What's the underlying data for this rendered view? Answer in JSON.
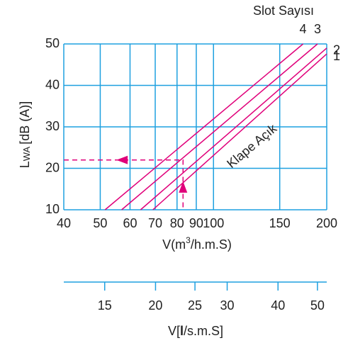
{
  "chart_data": {
    "type": "line",
    "legend_title": "Slot Sayısı",
    "xlog": true,
    "xlim": [
      40,
      200
    ],
    "xticks": [
      40,
      50,
      60,
      70,
      80,
      90,
      100,
      150,
      200
    ],
    "ylim": [
      10,
      50
    ],
    "yticks": [
      10,
      20,
      30,
      40,
      50
    ],
    "grid_color": "#1ea0e0",
    "ylabel": {
      "main": "L",
      "sub": "WA",
      "rest": "[dB (A)]"
    },
    "xlabel": {
      "pre": "V(m",
      "sup": "3",
      "post": "/h.m.S)"
    },
    "annotation": "Klape Açık",
    "guide": {
      "x": 83,
      "y": 22,
      "color": "#e0007a"
    },
    "series": [
      {
        "name": "1",
        "color": "#e0007a",
        "x": [
          69,
          200
        ],
        "values": [
          10,
          47.6
        ]
      },
      {
        "name": "2",
        "color": "#e0007a",
        "x": [
          64,
          200
        ],
        "values": [
          10,
          49
        ]
      },
      {
        "name": "3",
        "color": "#e0007a",
        "x": [
          57,
          189
        ],
        "values": [
          10,
          50
        ]
      },
      {
        "name": "4",
        "color": "#e0007a",
        "x": [
          51.5,
          173
        ],
        "values": [
          10,
          50
        ]
      }
    ],
    "x2lim": [
      11.9,
      52.7
    ],
    "x2ticks": [
      15,
      20,
      25,
      30,
      40,
      50
    ],
    "x2label": {
      "pre": "V[",
      "bold": "l",
      "post": "/s.m.S]"
    }
  }
}
